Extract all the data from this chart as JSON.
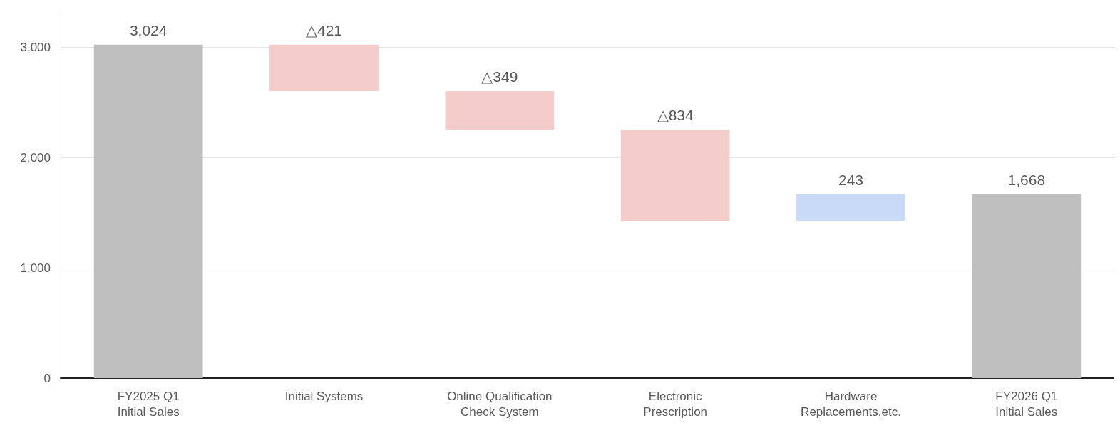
{
  "chart_data": {
    "type": "bar",
    "categories": [
      "FY2025 Q1\nInitial Sales",
      "Initial Systems",
      "Online Qualification\nCheck System",
      "Electronic\nPrescription",
      "Hardware\nReplacements,etc.",
      "FY2026 Q1\nInitial Sales"
    ],
    "values": [
      3024,
      -421,
      -349,
      -834,
      243,
      1668
    ],
    "base": [
      0,
      3024,
      2603,
      2254,
      1425,
      0
    ],
    "value_labels": [
      "3,024",
      "△421",
      "△349",
      "△834",
      "243",
      "1,668"
    ],
    "colors": [
      "#bfbfbf",
      "#f4cccc",
      "#f4cccc",
      "#f4cccc",
      "#c9daf8",
      "#bfbfbf"
    ],
    "yticks": [
      {
        "value": 0,
        "label": "0"
      },
      {
        "value": 1000,
        "label": "1,000"
      },
      {
        "value": 2000,
        "label": "2,000"
      },
      {
        "value": 3000,
        "label": "3,000"
      }
    ],
    "ylim": [
      0,
      3300
    ],
    "grid": "y"
  }
}
